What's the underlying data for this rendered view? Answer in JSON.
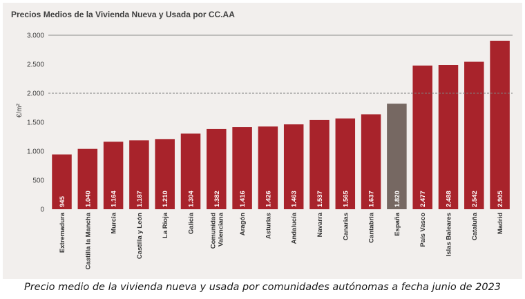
{
  "caption": "Precio medio de la vivienda nueva y usada por comunidades autónomas a fecha junio de 2023",
  "chart_data": {
    "type": "bar",
    "title": "Precios Medios de la Vivienda Nueva y Usada por CC.AA",
    "ylabel": "€/m²",
    "xlabel": "",
    "ylim": [
      0,
      3000
    ],
    "yticks": [
      0,
      500,
      1000,
      1500,
      2000,
      2500,
      3000
    ],
    "ytick_labels": [
      "0",
      "500",
      "1.000",
      "1.500",
      "2.000",
      "2.500",
      "3.000"
    ],
    "reference_line": {
      "value": 2000,
      "style": "dashed"
    },
    "grid": false,
    "categories": [
      "Extremadura",
      "Castilla la Mancha",
      "Murcia",
      "Castilla y León",
      "La Rioja",
      "Galicia",
      "Comunidad Valenciana",
      "Aragón",
      "Asturias",
      "Andalucía",
      "Navarra",
      "Canarias",
      "Cantabria",
      "España",
      "País Vasco",
      "Islas Baleares",
      "Cataluña",
      "Madrid"
    ],
    "category_lines": [
      [
        "Extremadura"
      ],
      [
        "Castilla la Mancha"
      ],
      [
        "Murcia"
      ],
      [
        "Castilla y León"
      ],
      [
        "La Rioja"
      ],
      [
        "Galicia"
      ],
      [
        "Comunidad",
        "Valenciana"
      ],
      [
        "Aragón"
      ],
      [
        "Asturias"
      ],
      [
        "Andalucía"
      ],
      [
        "Navarra"
      ],
      [
        "Canarias"
      ],
      [
        "Cantabria"
      ],
      [
        "España"
      ],
      [
        "País Vasco"
      ],
      [
        "Islas Baleares"
      ],
      [
        "Cataluña"
      ],
      [
        "Madrid"
      ]
    ],
    "values": [
      945,
      1040,
      1164,
      1187,
      1210,
      1304,
      1382,
      1416,
      1426,
      1463,
      1537,
      1565,
      1637,
      1820,
      2477,
      2488,
      2542,
      2905
    ],
    "value_labels": [
      "945",
      "1.040",
      "1.164",
      "1.187",
      "1.210",
      "1.304",
      "1.382",
      "1.416",
      "1.426",
      "1.463",
      "1.537",
      "1.565",
      "1.637",
      "1.820",
      "2.477",
      "2.488",
      "2.542",
      "2.905"
    ],
    "highlight_category": "España",
    "colors": {
      "bar": "#a8232b",
      "highlight": "#766862",
      "panel": "#f2efed",
      "axis_line": "#8c8c8c",
      "reference_line": "#7f7f7f"
    }
  }
}
